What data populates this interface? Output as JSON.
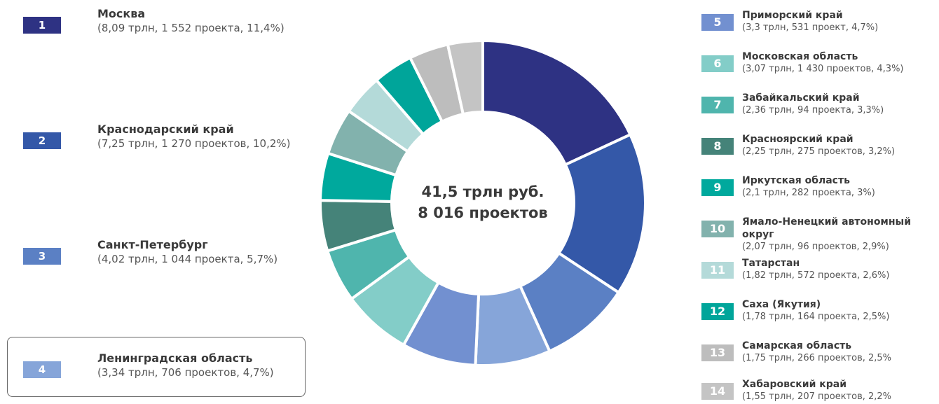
{
  "chart_data": {
    "type": "pie",
    "total_line1": "41,5 трлн руб.",
    "total_line2": "8 016 проектов",
    "slices": [
      {
        "num": "1",
        "name": "Москва",
        "details": "(8,09 трлн, 1 552 проекта, 11,4%)",
        "value": 8.09,
        "color": "#2e3283"
      },
      {
        "num": "2",
        "name": "Краснодарский край",
        "details": "(7,25 трлн, 1 270 проектов, 10,2%)",
        "value": 7.25,
        "color": "#3458a8"
      },
      {
        "num": "3",
        "name": "Санкт-Петербург",
        "details": "(4,02 трлн, 1 044 проекта, 5,7%)",
        "value": 4.02,
        "color": "#5b80c4"
      },
      {
        "num": "4",
        "name": "Ленинградская область",
        "details": "(3,34 трлн, 706 проектов, 4,7%)",
        "value": 3.34,
        "color": "#86a5d9"
      },
      {
        "num": "5",
        "name": "Приморский край",
        "details": "(3,3 трлн, 531 проект, 4,7%)",
        "value": 3.3,
        "color": "#7290d0"
      },
      {
        "num": "6",
        "name": "Московская область",
        "details": "(3,07 трлн, 1 430 проектов, 4,3%)",
        "value": 3.07,
        "color": "#83cdc8"
      },
      {
        "num": "7",
        "name": "Забайкальский край",
        "details": "(2,36 трлн, 94 проекта, 3,3%)",
        "value": 2.36,
        "color": "#4fb5ad"
      },
      {
        "num": "8",
        "name": "Красноярский край",
        "details": "(2,25 трлн, 275 проектов, 3,2%)",
        "value": 2.25,
        "color": "#458379"
      },
      {
        "num": "9",
        "name": "Иркутская область",
        "details": "(2,1 трлн, 282 проекта, 3%)",
        "value": 2.1,
        "color": "#00a99d"
      },
      {
        "num": "10",
        "name": "Ямало-Ненецкий автономный округ",
        "details": "(2,07 трлн, 96 проектов, 2,9%)",
        "value": 2.07,
        "color": "#82b2ad"
      },
      {
        "num": "11",
        "name": "Татарстан",
        "details": "(1,82 трлн, 572 проекта, 2,6%)",
        "value": 1.82,
        "color": "#b4dad9"
      },
      {
        "num": "12",
        "name": "Саха (Якутия)",
        "details": "(1,78 трлн, 164 проекта, 2,5%)",
        "value": 1.78,
        "color": "#00a59a"
      },
      {
        "num": "13",
        "name": "Самарская область",
        "details": "(1,75 трлн, 266 проектов, 2,5%",
        "value": 1.75,
        "color": "#bdbdbd"
      },
      {
        "num": "14",
        "name": "Хабаровский край",
        "details": "(1,55 трлн, 207 проектов, 2,2%",
        "value": 1.55,
        "color": "#c4c4c4"
      }
    ]
  }
}
